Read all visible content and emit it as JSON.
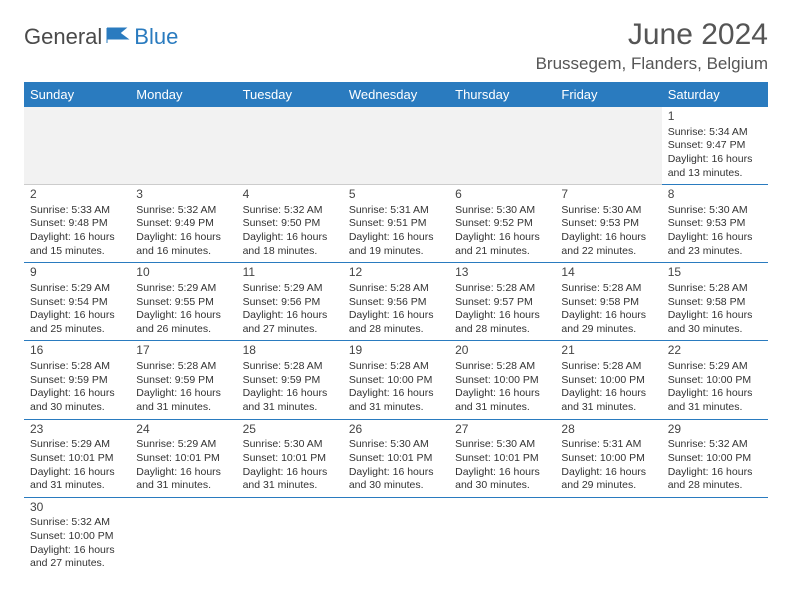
{
  "logo": {
    "part1": "General",
    "part2": "Blue"
  },
  "title": "June 2024",
  "location": "Brussegem, Flanders, Belgium",
  "colors": {
    "header_bg": "#2a7bbf",
    "header_text": "#ffffff",
    "border": "#2a7bbf",
    "blank_bg": "#f2f2f2",
    "text": "#333333"
  },
  "weekdays": [
    "Sunday",
    "Monday",
    "Tuesday",
    "Wednesday",
    "Thursday",
    "Friday",
    "Saturday"
  ],
  "weeks": [
    [
      null,
      null,
      null,
      null,
      null,
      null,
      {
        "day": "1",
        "sunrise": "Sunrise: 5:34 AM",
        "sunset": "Sunset: 9:47 PM",
        "daylight1": "Daylight: 16 hours",
        "daylight2": "and 13 minutes."
      }
    ],
    [
      {
        "day": "2",
        "sunrise": "Sunrise: 5:33 AM",
        "sunset": "Sunset: 9:48 PM",
        "daylight1": "Daylight: 16 hours",
        "daylight2": "and 15 minutes."
      },
      {
        "day": "3",
        "sunrise": "Sunrise: 5:32 AM",
        "sunset": "Sunset: 9:49 PM",
        "daylight1": "Daylight: 16 hours",
        "daylight2": "and 16 minutes."
      },
      {
        "day": "4",
        "sunrise": "Sunrise: 5:32 AM",
        "sunset": "Sunset: 9:50 PM",
        "daylight1": "Daylight: 16 hours",
        "daylight2": "and 18 minutes."
      },
      {
        "day": "5",
        "sunrise": "Sunrise: 5:31 AM",
        "sunset": "Sunset: 9:51 PM",
        "daylight1": "Daylight: 16 hours",
        "daylight2": "and 19 minutes."
      },
      {
        "day": "6",
        "sunrise": "Sunrise: 5:30 AM",
        "sunset": "Sunset: 9:52 PM",
        "daylight1": "Daylight: 16 hours",
        "daylight2": "and 21 minutes."
      },
      {
        "day": "7",
        "sunrise": "Sunrise: 5:30 AM",
        "sunset": "Sunset: 9:53 PM",
        "daylight1": "Daylight: 16 hours",
        "daylight2": "and 22 minutes."
      },
      {
        "day": "8",
        "sunrise": "Sunrise: 5:30 AM",
        "sunset": "Sunset: 9:53 PM",
        "daylight1": "Daylight: 16 hours",
        "daylight2": "and 23 minutes."
      }
    ],
    [
      {
        "day": "9",
        "sunrise": "Sunrise: 5:29 AM",
        "sunset": "Sunset: 9:54 PM",
        "daylight1": "Daylight: 16 hours",
        "daylight2": "and 25 minutes."
      },
      {
        "day": "10",
        "sunrise": "Sunrise: 5:29 AM",
        "sunset": "Sunset: 9:55 PM",
        "daylight1": "Daylight: 16 hours",
        "daylight2": "and 26 minutes."
      },
      {
        "day": "11",
        "sunrise": "Sunrise: 5:29 AM",
        "sunset": "Sunset: 9:56 PM",
        "daylight1": "Daylight: 16 hours",
        "daylight2": "and 27 minutes."
      },
      {
        "day": "12",
        "sunrise": "Sunrise: 5:28 AM",
        "sunset": "Sunset: 9:56 PM",
        "daylight1": "Daylight: 16 hours",
        "daylight2": "and 28 minutes."
      },
      {
        "day": "13",
        "sunrise": "Sunrise: 5:28 AM",
        "sunset": "Sunset: 9:57 PM",
        "daylight1": "Daylight: 16 hours",
        "daylight2": "and 28 minutes."
      },
      {
        "day": "14",
        "sunrise": "Sunrise: 5:28 AM",
        "sunset": "Sunset: 9:58 PM",
        "daylight1": "Daylight: 16 hours",
        "daylight2": "and 29 minutes."
      },
      {
        "day": "15",
        "sunrise": "Sunrise: 5:28 AM",
        "sunset": "Sunset: 9:58 PM",
        "daylight1": "Daylight: 16 hours",
        "daylight2": "and 30 minutes."
      }
    ],
    [
      {
        "day": "16",
        "sunrise": "Sunrise: 5:28 AM",
        "sunset": "Sunset: 9:59 PM",
        "daylight1": "Daylight: 16 hours",
        "daylight2": "and 30 minutes."
      },
      {
        "day": "17",
        "sunrise": "Sunrise: 5:28 AM",
        "sunset": "Sunset: 9:59 PM",
        "daylight1": "Daylight: 16 hours",
        "daylight2": "and 31 minutes."
      },
      {
        "day": "18",
        "sunrise": "Sunrise: 5:28 AM",
        "sunset": "Sunset: 9:59 PM",
        "daylight1": "Daylight: 16 hours",
        "daylight2": "and 31 minutes."
      },
      {
        "day": "19",
        "sunrise": "Sunrise: 5:28 AM",
        "sunset": "Sunset: 10:00 PM",
        "daylight1": "Daylight: 16 hours",
        "daylight2": "and 31 minutes."
      },
      {
        "day": "20",
        "sunrise": "Sunrise: 5:28 AM",
        "sunset": "Sunset: 10:00 PM",
        "daylight1": "Daylight: 16 hours",
        "daylight2": "and 31 minutes."
      },
      {
        "day": "21",
        "sunrise": "Sunrise: 5:28 AM",
        "sunset": "Sunset: 10:00 PM",
        "daylight1": "Daylight: 16 hours",
        "daylight2": "and 31 minutes."
      },
      {
        "day": "22",
        "sunrise": "Sunrise: 5:29 AM",
        "sunset": "Sunset: 10:00 PM",
        "daylight1": "Daylight: 16 hours",
        "daylight2": "and 31 minutes."
      }
    ],
    [
      {
        "day": "23",
        "sunrise": "Sunrise: 5:29 AM",
        "sunset": "Sunset: 10:01 PM",
        "daylight1": "Daylight: 16 hours",
        "daylight2": "and 31 minutes."
      },
      {
        "day": "24",
        "sunrise": "Sunrise: 5:29 AM",
        "sunset": "Sunset: 10:01 PM",
        "daylight1": "Daylight: 16 hours",
        "daylight2": "and 31 minutes."
      },
      {
        "day": "25",
        "sunrise": "Sunrise: 5:30 AM",
        "sunset": "Sunset: 10:01 PM",
        "daylight1": "Daylight: 16 hours",
        "daylight2": "and 31 minutes."
      },
      {
        "day": "26",
        "sunrise": "Sunrise: 5:30 AM",
        "sunset": "Sunset: 10:01 PM",
        "daylight1": "Daylight: 16 hours",
        "daylight2": "and 30 minutes."
      },
      {
        "day": "27",
        "sunrise": "Sunrise: 5:30 AM",
        "sunset": "Sunset: 10:01 PM",
        "daylight1": "Daylight: 16 hours",
        "daylight2": "and 30 minutes."
      },
      {
        "day": "28",
        "sunrise": "Sunrise: 5:31 AM",
        "sunset": "Sunset: 10:00 PM",
        "daylight1": "Daylight: 16 hours",
        "daylight2": "and 29 minutes."
      },
      {
        "day": "29",
        "sunrise": "Sunrise: 5:32 AM",
        "sunset": "Sunset: 10:00 PM",
        "daylight1": "Daylight: 16 hours",
        "daylight2": "and 28 minutes."
      }
    ],
    [
      {
        "day": "30",
        "sunrise": "Sunrise: 5:32 AM",
        "sunset": "Sunset: 10:00 PM",
        "daylight1": "Daylight: 16 hours",
        "daylight2": "and 27 minutes."
      },
      null,
      null,
      null,
      null,
      null,
      null
    ]
  ]
}
